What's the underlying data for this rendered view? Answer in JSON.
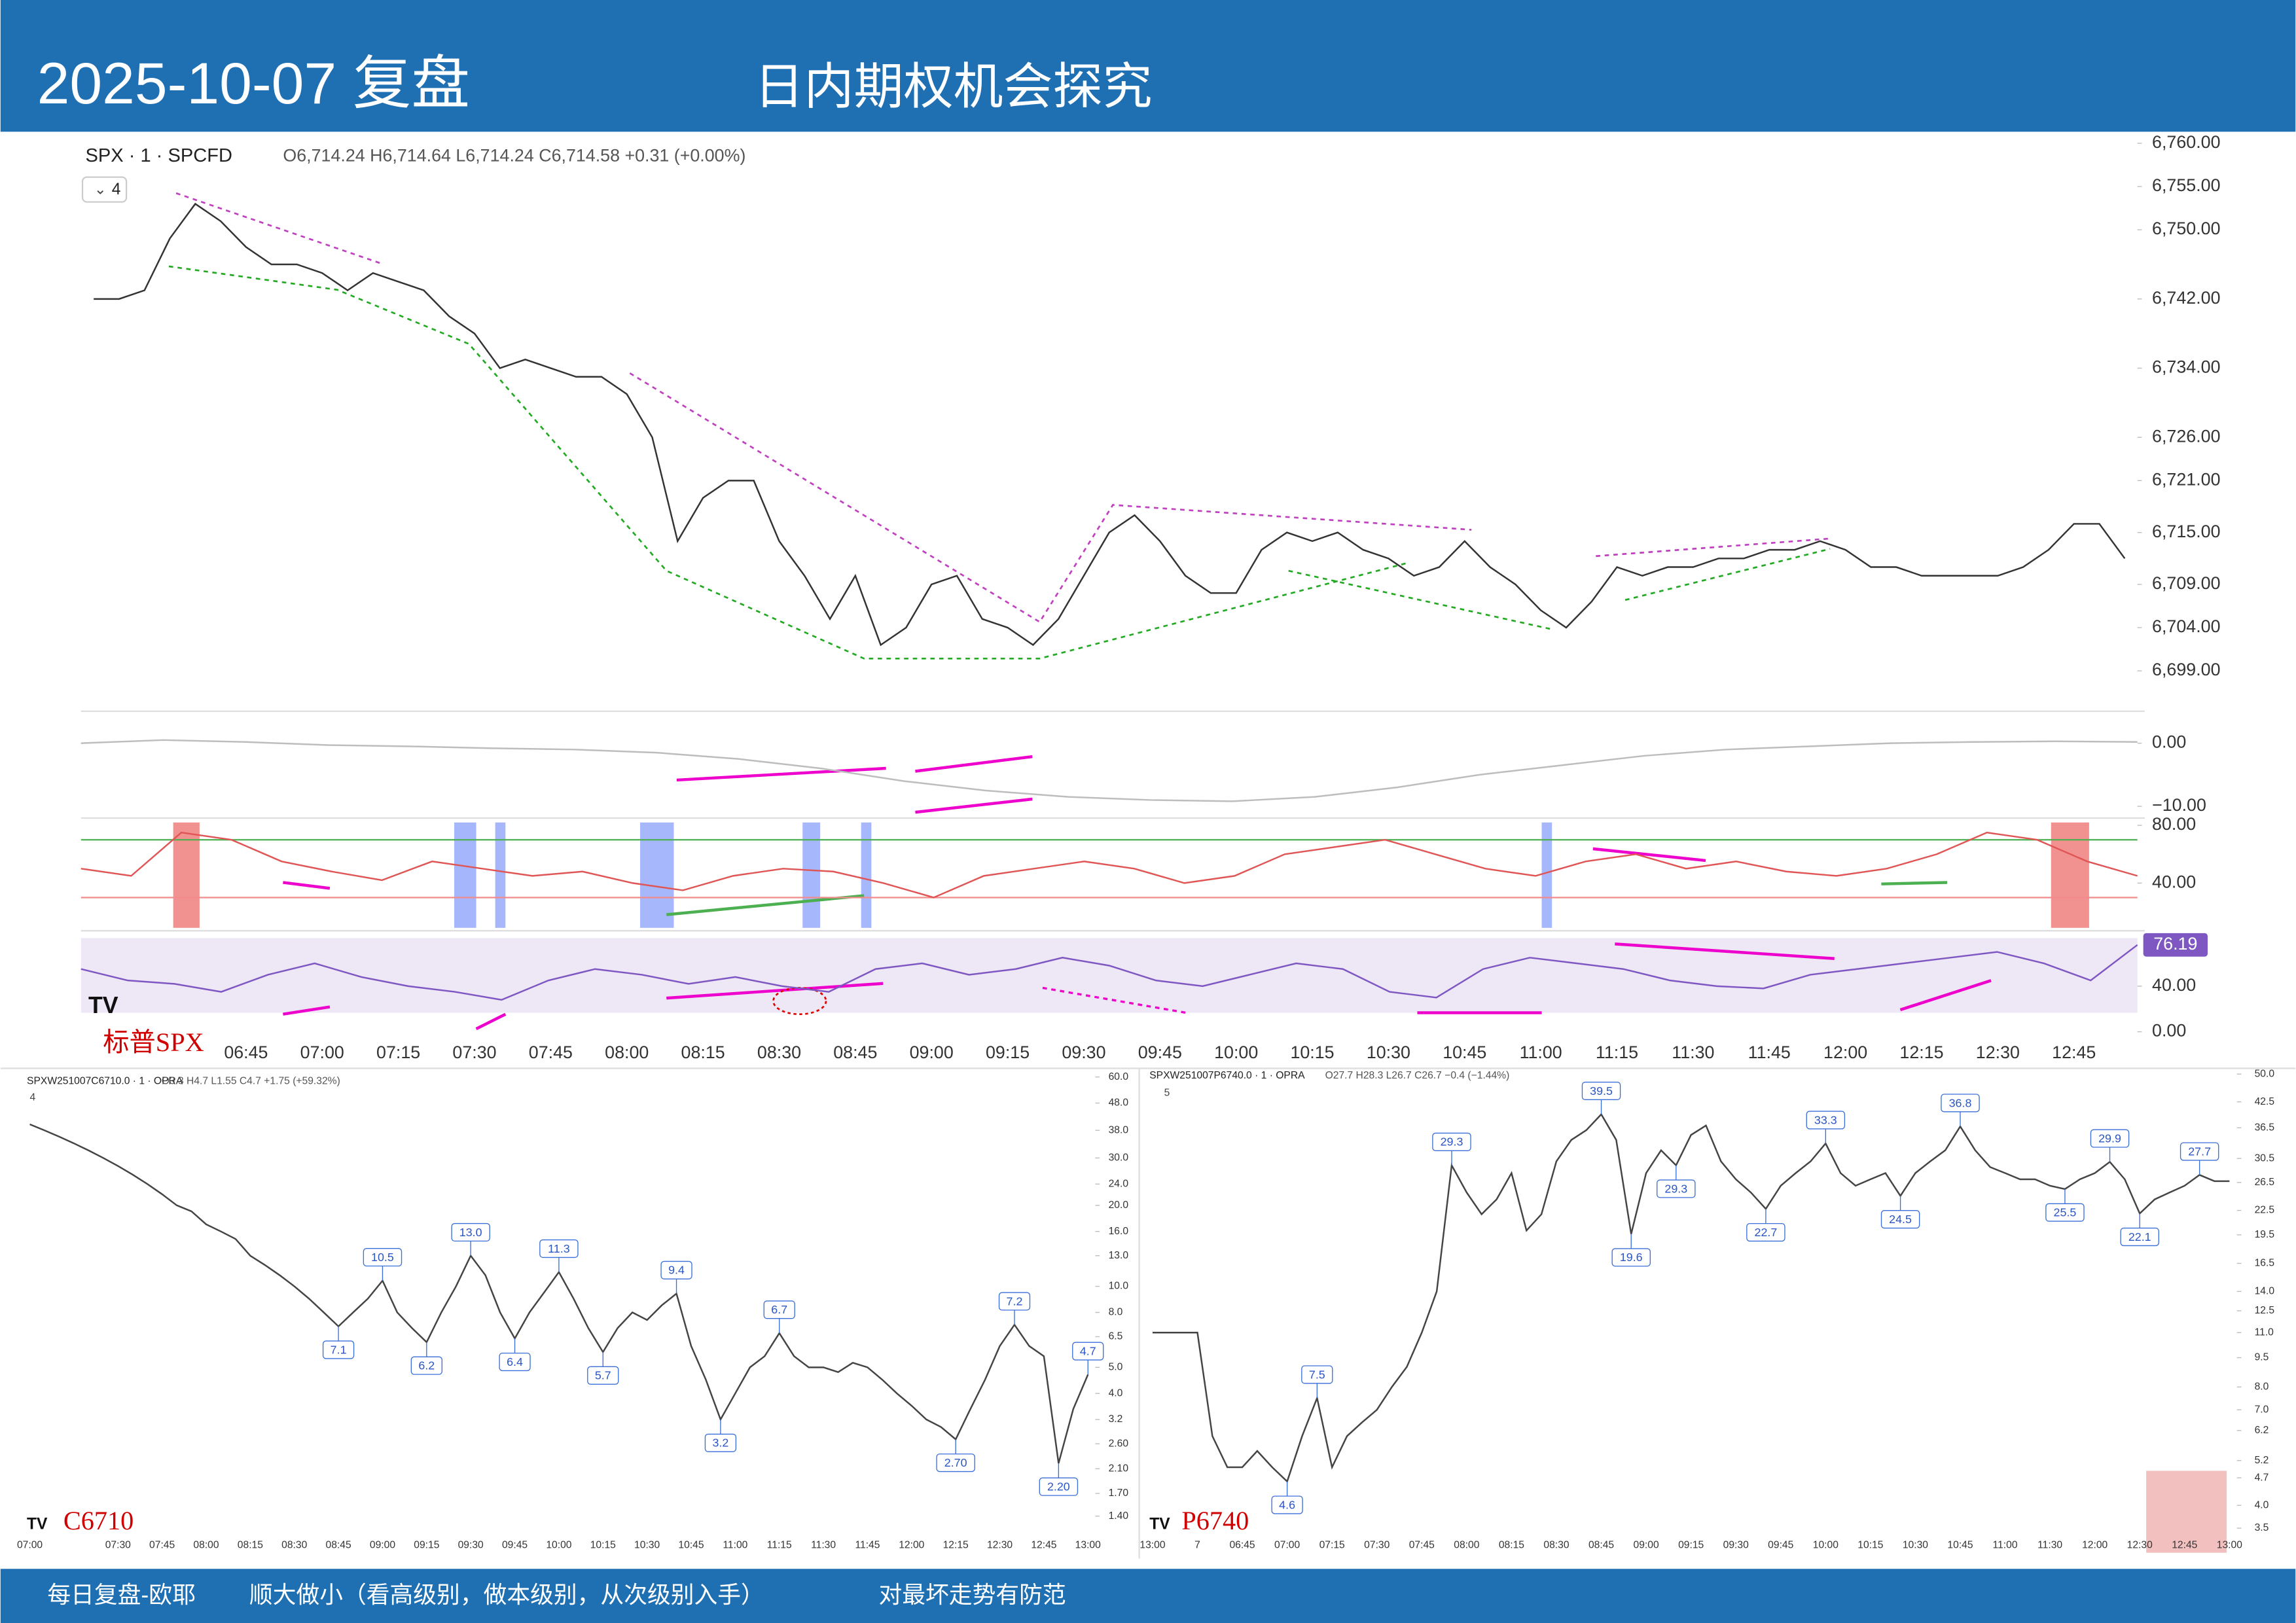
{
  "header": {
    "title": "2025-10-07 复盘",
    "subtitle": "日内期权机会探究"
  },
  "footer": [
    "每日复盘-欧耶",
    "顺大做小（看高级别，做本级别，从次级别入手）",
    "对最坏走势有防范"
  ],
  "chart_data": [
    {
      "type": "line",
      "title": "SPX · 1 · SPCFD",
      "subtitle": "O6,714.24 H6,714.64 L6,714.24 C6,714.58 +0.31 (+0.00%)",
      "indicator_count": 4,
      "annotation": "标普SPX",
      "color": "#333333",
      "categories": [
        null,
        null,
        null,
        null,
        null,
        null,
        "06:45",
        null,
        null,
        "07:00",
        null,
        null,
        "07:15",
        null,
        null,
        "07:30",
        null,
        null,
        "07:45",
        null,
        null,
        "08:00",
        null,
        null,
        "08:15",
        null,
        null,
        "08:30",
        null,
        null,
        "08:45",
        null,
        null,
        "09:00",
        null,
        null,
        "09:15",
        null,
        null,
        "09:30",
        null,
        null,
        "09:45",
        null,
        null,
        "10:00",
        null,
        null,
        "10:15",
        null,
        null,
        "10:30",
        null,
        null,
        "10:45",
        null,
        null,
        "11:00",
        null,
        null,
        "11:15",
        null,
        null,
        "11:30",
        null,
        null,
        "11:45",
        null,
        null,
        "12:00",
        null,
        null,
        "12:15",
        null,
        null,
        "12:30",
        null,
        null,
        "12:45",
        null,
        null
      ],
      "values": [
        6742,
        6742,
        6743,
        6749,
        6753,
        6751,
        6748,
        6746,
        6746,
        6745,
        6743,
        6745,
        6744,
        6743,
        6740,
        6738,
        6734,
        6735,
        6734,
        6733,
        6733,
        6731,
        6726,
        6714,
        6719,
        6721,
        6721,
        6714,
        6710,
        6705,
        6710,
        6702,
        6704,
        6709,
        6710,
        6705,
        6704,
        6702,
        6705,
        6710,
        6715,
        6717,
        6714,
        6710,
        6708,
        6708,
        6713,
        6715,
        6714,
        6715,
        6713,
        6712,
        6710,
        6711,
        6714,
        6711,
        6709,
        6706,
        6704,
        6707,
        6711,
        6710,
        6711,
        6711,
        6712,
        6712,
        6713,
        6713,
        6714,
        6713,
        6711,
        6711,
        6710,
        6710,
        6710,
        6710,
        6711,
        6713,
        6716,
        6716,
        6712
      ],
      "ylim": [
        6694.5,
        6761
      ],
      "yticks": [
        {
          "value": 6760,
          "label": "6,760.00"
        },
        {
          "value": 6755,
          "label": "6,755.00"
        },
        {
          "value": 6750,
          "label": "6,750.00"
        },
        {
          "value": 6742,
          "label": "6,742.00"
        },
        {
          "value": 6734,
          "label": "6,734.00"
        },
        {
          "value": 6726,
          "label": "6,726.00"
        },
        {
          "value": 6721,
          "label": "6,721.00"
        },
        {
          "value": 6715,
          "label": "6,715.00"
        },
        {
          "value": 6709,
          "label": "6,709.00"
        },
        {
          "value": 6704,
          "label": "6,704.00"
        },
        {
          "value": 6699,
          "label": "6,699.00"
        }
      ]
    },
    {
      "type": "line",
      "color": "#bdbdbd",
      "values": [
        0,
        0.5,
        0.2,
        -0.3,
        -0.5,
        -0.8,
        -1,
        -1.5,
        -2.5,
        -4,
        -6,
        -7.5,
        -8.5,
        -9,
        -9.2,
        -8.5,
        -7,
        -5,
        -3.5,
        -2,
        -1,
        -0.5,
        0,
        0.2,
        0.3,
        0.2
      ],
      "ylim": [
        -11.4,
        4.6
      ],
      "yticks": [
        {
          "value": 0,
          "label": "0.00"
        },
        {
          "value": -10,
          "label": "−10.00"
        }
      ]
    },
    {
      "type": "line",
      "color": "#e05555",
      "values": [
        50,
        45,
        75,
        70,
        55,
        48,
        42,
        55,
        50,
        45,
        48,
        40,
        35,
        45,
        50,
        48,
        40,
        30,
        45,
        50,
        55,
        50,
        40,
        45,
        60,
        65,
        70,
        60,
        50,
        45,
        55,
        60,
        50,
        55,
        48,
        45,
        50,
        60,
        75,
        70,
        55,
        45
      ],
      "ylim": [
        9,
        83
      ],
      "yticks": [
        {
          "value": 80,
          "label": "80.00"
        },
        {
          "value": 40,
          "label": "40.00"
        }
      ],
      "levels": [
        {
          "value": 70,
          "color": "#4caf50"
        },
        {
          "value": 30,
          "color": "#f28b8b"
        }
      ]
    },
    {
      "type": "line",
      "color": "#7e57c2",
      "values": [
        55,
        45,
        42,
        35,
        50,
        60,
        48,
        40,
        35,
        28,
        45,
        55,
        50,
        42,
        48,
        40,
        35,
        55,
        60,
        50,
        55,
        65,
        58,
        45,
        40,
        50,
        60,
        55,
        35,
        30,
        55,
        65,
        60,
        55,
        45,
        40,
        38,
        50,
        55,
        60,
        65,
        70,
        60,
        45,
        76.19
      ],
      "last_value": 76.19,
      "ylim": [
        0,
        86
      ],
      "yticks": [
        {
          "value": 40,
          "label": "40.00"
        },
        {
          "value": 0,
          "label": "0.00"
        }
      ]
    },
    {
      "type": "line",
      "title": "SPXW251007C6710.0 · 1 · OPRA",
      "subtitle": "O3.3 H4.7 L1.55 C4.7 +1.75 (+59.32%)",
      "indicator_count": 4,
      "label": "C6710",
      "color": "#444444",
      "log": true,
      "categories": [
        "07:00",
        null,
        null,
        null,
        null,
        null,
        "07:30",
        null,
        null,
        "07:45",
        null,
        null,
        "08:00",
        null,
        null,
        "08:15",
        null,
        null,
        "08:30",
        null,
        null,
        "08:45",
        null,
        null,
        "09:00",
        null,
        null,
        "09:15",
        null,
        null,
        "09:30",
        null,
        null,
        "09:45",
        null,
        null,
        "10:00",
        null,
        null,
        "10:15",
        null,
        null,
        "10:30",
        null,
        null,
        "10:45",
        null,
        null,
        "11:00",
        null,
        null,
        "11:15",
        null,
        null,
        "11:30",
        null,
        null,
        "11:45",
        null,
        null,
        "12:00",
        null,
        null,
        "12:15",
        null,
        null,
        "12:30",
        null,
        null,
        "12:45",
        null,
        null,
        "13:00"
      ],
      "values": [
        40,
        38,
        36,
        34,
        32,
        30,
        28,
        26,
        24,
        22,
        20,
        19,
        17,
        16,
        15,
        13,
        12,
        11,
        10,
        9,
        8,
        7.1,
        8,
        9,
        10.5,
        8,
        7,
        6.2,
        8,
        10,
        13,
        11,
        8,
        6.4,
        8,
        9.5,
        11.3,
        9,
        7,
        5.7,
        7,
        8,
        7.5,
        8.5,
        9.4,
        6,
        4.5,
        3.2,
        4,
        5,
        5.5,
        6.7,
        5.5,
        5,
        5,
        4.8,
        5.2,
        5,
        4.5,
        4,
        3.6,
        3.2,
        3,
        2.7,
        3.5,
        4.5,
        6,
        7.2,
        6,
        5.5,
        2.2,
        3.5,
        4.7
      ],
      "value_labels": [
        null,
        null,
        null,
        null,
        null,
        null,
        null,
        null,
        null,
        null,
        null,
        null,
        null,
        null,
        null,
        null,
        null,
        null,
        null,
        null,
        null,
        "7.1",
        null,
        null,
        "10.5",
        null,
        null,
        "6.2",
        null,
        null,
        "13.0",
        null,
        null,
        "6.4",
        null,
        null,
        "11.3",
        null,
        null,
        "5.7",
        null,
        null,
        null,
        null,
        "9.4",
        null,
        null,
        "3.2",
        null,
        null,
        null,
        "6.7",
        null,
        null,
        null,
        null,
        null,
        null,
        null,
        null,
        null,
        null,
        null,
        "2.70",
        null,
        null,
        null,
        "7.2",
        null,
        null,
        "2.20",
        null,
        "4.7"
      ],
      "ylim": [
        1.25,
        64.6
      ],
      "yticks": [
        {
          "value": 60,
          "label": "60.0"
        },
        {
          "value": 48,
          "label": "48.0"
        },
        {
          "value": 38,
          "label": "38.0"
        },
        {
          "value": 30,
          "label": "30.0"
        },
        {
          "value": 24,
          "label": "24.0"
        },
        {
          "value": 20,
          "label": "20.0"
        },
        {
          "value": 16,
          "label": "16.0"
        },
        {
          "value": 13,
          "label": "13.0"
        },
        {
          "value": 10,
          "label": "10.0"
        },
        {
          "value": 8,
          "label": "8.0"
        },
        6.5,
        {
          "value": 5,
          "label": "5.0"
        },
        {
          "value": 4,
          "label": "4.0"
        },
        3.2,
        {
          "value": 2.6,
          "label": "2.60"
        },
        {
          "value": 2.1,
          "label": "2.10"
        },
        {
          "value": 1.7,
          "label": "1.70"
        },
        {
          "value": 1.4,
          "label": "1.40"
        }
      ]
    },
    {
      "type": "line",
      "title": "SPXW251007P6740.0 · 1 · OPRA",
      "subtitle": "O27.7 H28.3 L26.7 C26.7 −0.4 (−1.44%)",
      "indicator_count": 5,
      "label": "P6740",
      "color": "#444444",
      "log": true,
      "categories": [
        "13:00",
        null,
        null,
        "7",
        null,
        null,
        "06:45",
        null,
        null,
        "07:00",
        null,
        null,
        "07:15",
        null,
        null,
        "07:30",
        null,
        null,
        "07:45",
        null,
        null,
        "08:00",
        null,
        null,
        "08:15",
        null,
        null,
        "08:30",
        null,
        null,
        "08:45",
        null,
        null,
        "09:00",
        null,
        null,
        "09:15",
        null,
        null,
        "09:30",
        null,
        null,
        "09:45",
        null,
        null,
        "10:00",
        null,
        null,
        "10:15",
        null,
        null,
        "10:30",
        null,
        null,
        "10:45",
        null,
        null,
        "11:00",
        null,
        null,
        "11:30",
        null,
        null,
        "12:00",
        null,
        null,
        "12:30",
        null,
        null,
        "12:45",
        null,
        null,
        "13:00"
      ],
      "values": [
        11,
        11,
        11,
        11,
        6,
        5,
        5,
        5.5,
        5,
        4.6,
        6,
        7.5,
        5,
        6,
        6.5,
        7,
        8,
        9,
        11,
        14,
        29.3,
        25,
        22,
        24,
        28,
        20,
        22,
        30,
        34,
        36,
        39.5,
        34,
        19.6,
        28,
        32,
        29.3,
        35,
        37,
        30,
        27,
        25,
        22.7,
        26,
        28,
        30,
        33.3,
        28,
        26,
        27,
        28,
        24.5,
        28,
        30,
        32,
        36.8,
        32,
        29,
        28,
        27,
        27,
        26,
        25.5,
        27,
        28,
        29.9,
        27,
        22.1,
        24,
        25,
        26,
        27.7,
        26.7,
        26.7
      ],
      "value_labels": [
        null,
        null,
        null,
        null,
        null,
        null,
        null,
        null,
        null,
        "4.6",
        null,
        "7.5",
        null,
        null,
        null,
        null,
        null,
        null,
        null,
        null,
        "29.3",
        null,
        null,
        null,
        null,
        null,
        null,
        null,
        null,
        null,
        "39.5",
        null,
        "19.6",
        null,
        null,
        "29.3",
        null,
        null,
        null,
        null,
        null,
        "22.7",
        null,
        null,
        null,
        "33.3",
        null,
        null,
        null,
        null,
        "24.5",
        null,
        null,
        null,
        "36.8",
        null,
        null,
        null,
        null,
        null,
        null,
        "25.5",
        null,
        null,
        "29.9",
        null,
        "22.1",
        null,
        null,
        null,
        "27.7",
        null,
        null
      ],
      "ylim": [
        3.33,
        52.6
      ],
      "yticks": [
        {
          "value": 50,
          "label": "50.0"
        },
        42.5,
        36.5,
        30.5,
        26.5,
        22.5,
        19.5,
        16.5,
        {
          "value": 14,
          "label": "14.0"
        },
        12.5,
        {
          "value": 11,
          "label": "11.0"
        },
        9.5,
        {
          "value": 8,
          "label": "8.0"
        },
        {
          "value": 7,
          "label": "7.0"
        },
        6.2,
        5.2,
        4.7,
        {
          "value": 4,
          "label": "4.0"
        },
        3.5
      ]
    }
  ]
}
